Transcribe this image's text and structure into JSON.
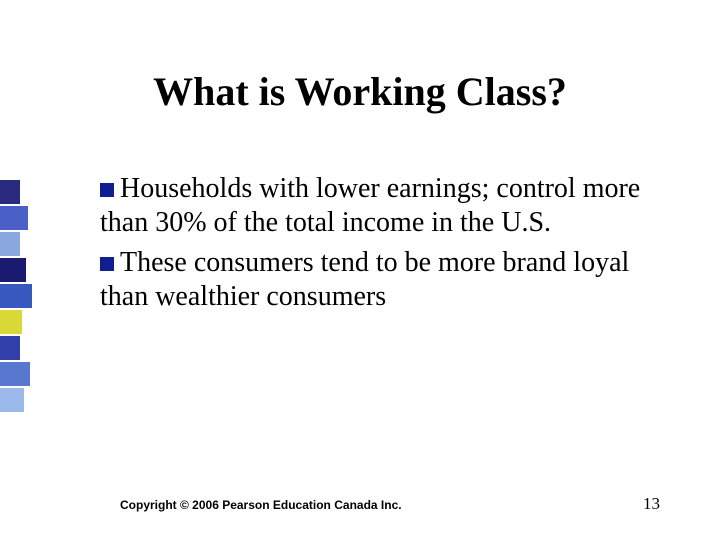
{
  "slide": {
    "title": "What is Working Class?",
    "title_fontsize": 40,
    "body_fontsize": 28,
    "bullets": [
      {
        "text": "Households with lower earnings; control more than 30% of the total income in the U.S."
      },
      {
        "text": "These consumers tend to be more brand loyal than wealthier consumers"
      }
    ],
    "bullet_marker": {
      "color": "#0f1f8f",
      "size": 14
    },
    "sidebar_blocks": [
      {
        "color": "#2a2a80",
        "w": 20
      },
      {
        "color": "#4a60c8",
        "w": 28
      },
      {
        "color": "#8aa8e0",
        "w": 20
      },
      {
        "color": "#1a1a70",
        "w": 26
      },
      {
        "color": "#3858c0",
        "w": 32
      },
      {
        "color": "#d8d838",
        "w": 22
      },
      {
        "color": "#3040a8",
        "w": 20
      },
      {
        "color": "#5878d0",
        "w": 30
      },
      {
        "color": "#9ab8e8",
        "w": 24
      }
    ]
  },
  "footer": {
    "copyright": "Copyright © 2006 Pearson Education Canada Inc.",
    "copyright_fontsize": 12,
    "page_number": "13",
    "pagenum_fontsize": 17
  },
  "colors": {
    "background": "#ffffff",
    "text": "#000000"
  }
}
